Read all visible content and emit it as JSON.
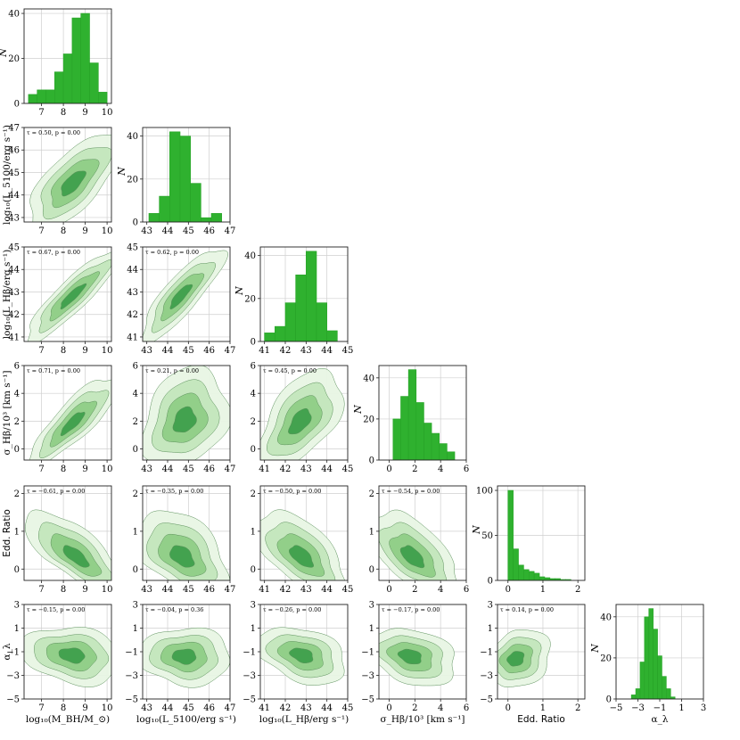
{
  "chart_data": {
    "type": "corner",
    "accent_color": "#2fb12f",
    "contour_colors": [
      "#e8f5e4",
      "#c3e6bc",
      "#8fce86",
      "#3f9f4c"
    ],
    "variables": [
      {
        "label": "log₁₀(M_BH/M_⊙)",
        "axis_label": "log₁₀(M_BH/M_⊙)",
        "range": [
          6.2,
          10.2
        ],
        "ticks": [
          7,
          8,
          9,
          10
        ]
      },
      {
        "label": "log₁₀(L_5100/erg s⁻¹)",
        "axis_label": "log₁₀(L_5100/erg s⁻¹)",
        "range": [
          42.8,
          47
        ],
        "ticks": [
          43,
          44,
          45,
          46,
          47
        ]
      },
      {
        "label": "log₁₀(L_Hβ/erg s⁻¹)",
        "axis_label": "log₁₀(L_Hβ/erg s⁻¹)",
        "range": [
          40.8,
          45
        ],
        "ticks": [
          41,
          42,
          43,
          44,
          45
        ]
      },
      {
        "label": "σ_Hβ/10³ [km s⁻¹]",
        "axis_label": "σ_Hβ/10³ [km s⁻¹]",
        "range": [
          -0.8,
          6
        ],
        "ticks": [
          0,
          2,
          4,
          6
        ]
      },
      {
        "label": "Edd. Ratio",
        "axis_label": "Edd. Ratio",
        "range": [
          -0.3,
          2.2
        ],
        "ticks": [
          0,
          1,
          2
        ]
      },
      {
        "label": "α_λ",
        "axis_label": "α_λ",
        "range": [
          -5,
          3
        ],
        "ticks": [
          -5,
          -3,
          -1,
          1,
          3
        ]
      }
    ],
    "histograms": [
      {
        "bin_edges": [
          6.4,
          6.8,
          7.2,
          7.6,
          8.0,
          8.4,
          8.8,
          9.2,
          9.6,
          10.0
        ],
        "counts": [
          4,
          6,
          6,
          14,
          22,
          38,
          40,
          18,
          5
        ],
        "ylim": [
          0,
          42
        ],
        "yticks": [
          0,
          20,
          40
        ],
        "ylabel": "N"
      },
      {
        "bin_edges": [
          43.1,
          43.6,
          44.1,
          44.6,
          45.1,
          45.6,
          46.1,
          46.6
        ],
        "counts": [
          4,
          12,
          42,
          40,
          18,
          2,
          4
        ],
        "ylim": [
          0,
          44
        ],
        "yticks": [
          0,
          20,
          40
        ],
        "ylabel": "N"
      },
      {
        "bin_edges": [
          41.0,
          41.5,
          42.0,
          42.5,
          43.0,
          43.5,
          44.0,
          44.5
        ],
        "counts": [
          4,
          7,
          18,
          31,
          42,
          18,
          5
        ],
        "ylim": [
          0,
          44
        ],
        "yticks": [
          0,
          20,
          40
        ],
        "ylabel": "N"
      },
      {
        "bin_edges": [
          0.3,
          0.9,
          1.5,
          2.1,
          2.7,
          3.3,
          3.9,
          4.5,
          5.1
        ],
        "counts": [
          20,
          31,
          44,
          28,
          18,
          13,
          8,
          4
        ],
        "ylim": [
          0,
          46
        ],
        "yticks": [
          0,
          20,
          40
        ],
        "ylabel": "N"
      },
      {
        "bin_edges": [
          0.0,
          0.15,
          0.3,
          0.45,
          0.6,
          0.75,
          0.9,
          1.05,
          1.2,
          1.35,
          1.5,
          1.65,
          1.8
        ],
        "counts": [
          100,
          35,
          17,
          12,
          10,
          8,
          4,
          3,
          2,
          2,
          1,
          1
        ],
        "ylim": [
          0,
          105
        ],
        "yticks": [
          0,
          50,
          100
        ],
        "ylabel": "N"
      },
      {
        "bin_edges": [
          -3.6,
          -3.2,
          -2.8,
          -2.4,
          -2.0,
          -1.6,
          -1.2,
          -0.8,
          -0.4,
          0.0,
          0.4
        ],
        "counts": [
          2,
          5,
          18,
          40,
          44,
          34,
          21,
          11,
          5,
          1
        ],
        "ylim": [
          0,
          46
        ],
        "yticks": [
          0,
          20,
          40
        ],
        "ylabel": "N"
      }
    ],
    "pairs": [
      {
        "row": 1,
        "col": 0,
        "tau": "0.50",
        "p": "0.00",
        "center": [
          8.4,
          44.5
        ],
        "spread": [
          0.75,
          0.75
        ],
        "rho": 0.7,
        "skew": [
          0.2,
          0.2
        ]
      },
      {
        "row": 2,
        "col": 0,
        "tau": "0.67",
        "p": "0.00",
        "center": [
          8.4,
          42.8
        ],
        "spread": [
          0.8,
          0.75
        ],
        "rho": 0.9,
        "skew": [
          0.1,
          0.1
        ]
      },
      {
        "row": 2,
        "col": 1,
        "tau": "0.62",
        "p": "0.00",
        "center": [
          44.6,
          42.8
        ],
        "spread": [
          0.7,
          0.75
        ],
        "rho": 0.85,
        "skew": [
          0.2,
          0.1
        ]
      },
      {
        "row": 3,
        "col": 0,
        "tau": "0.71",
        "p": "0.00",
        "center": [
          8.4,
          1.8
        ],
        "spread": [
          0.75,
          1.1
        ],
        "rho": 0.85,
        "skew": [
          0.1,
          0.3
        ]
      },
      {
        "row": 3,
        "col": 1,
        "tau": "0.21",
        "p": "0.00",
        "center": [
          44.8,
          2.0
        ],
        "spread": [
          0.75,
          1.2
        ],
        "rho": 0.25,
        "skew": [
          0.1,
          0.3
        ]
      },
      {
        "row": 3,
        "col": 2,
        "tau": "0.45",
        "p": "0.00",
        "center": [
          42.7,
          1.9
        ],
        "spread": [
          0.75,
          1.2
        ],
        "rho": 0.55,
        "skew": [
          0.0,
          0.3
        ]
      },
      {
        "row": 4,
        "col": 0,
        "tau": "−0.61",
        "p": "0.00",
        "center": [
          8.6,
          0.3
        ],
        "spread": [
          0.85,
          0.35
        ],
        "rho": -0.75,
        "skew": [
          0.0,
          0.6
        ]
      },
      {
        "row": 4,
        "col": 1,
        "tau": "−0.35",
        "p": "0.00",
        "center": [
          44.7,
          0.3
        ],
        "spread": [
          0.8,
          0.35
        ],
        "rho": -0.45,
        "skew": [
          0.1,
          0.6
        ]
      },
      {
        "row": 4,
        "col": 2,
        "tau": "−0.50",
        "p": "0.00",
        "center": [
          42.8,
          0.3
        ],
        "spread": [
          0.8,
          0.35
        ],
        "rho": -0.6,
        "skew": [
          0.0,
          0.6
        ]
      },
      {
        "row": 4,
        "col": 3,
        "tau": "−0.54",
        "p": "0.00",
        "center": [
          1.8,
          0.3
        ],
        "spread": [
          1.2,
          0.35
        ],
        "rho": -0.6,
        "skew": [
          0.3,
          0.6
        ]
      },
      {
        "row": 5,
        "col": 0,
        "tau": "−0.15",
        "p": "0.00",
        "center": [
          8.4,
          -1.3
        ],
        "spread": [
          0.85,
          0.9
        ],
        "rho": -0.2,
        "skew": [
          0.0,
          0.0
        ]
      },
      {
        "row": 5,
        "col": 1,
        "tau": "−0.04",
        "p": "0.36",
        "center": [
          44.8,
          -1.4
        ],
        "spread": [
          0.8,
          0.9
        ],
        "rho": -0.05,
        "skew": [
          0.1,
          0.0
        ]
      },
      {
        "row": 5,
        "col": 2,
        "tau": "−0.26",
        "p": "0.00",
        "center": [
          42.8,
          -1.3
        ],
        "spread": [
          0.8,
          0.9
        ],
        "rho": -0.35,
        "skew": [
          0.0,
          0.0
        ]
      },
      {
        "row": 5,
        "col": 3,
        "tau": "−0.17",
        "p": "0.00",
        "center": [
          1.6,
          -1.4
        ],
        "spread": [
          1.2,
          0.9
        ],
        "rho": -0.3,
        "skew": [
          0.3,
          0.0
        ]
      },
      {
        "row": 5,
        "col": 4,
        "tau": "0.14",
        "p": "0.00",
        "center": [
          0.2,
          -1.6
        ],
        "spread": [
          0.3,
          0.9
        ],
        "rho": 0.2,
        "skew": [
          0.6,
          0.0
        ]
      }
    ],
    "grid": true
  }
}
